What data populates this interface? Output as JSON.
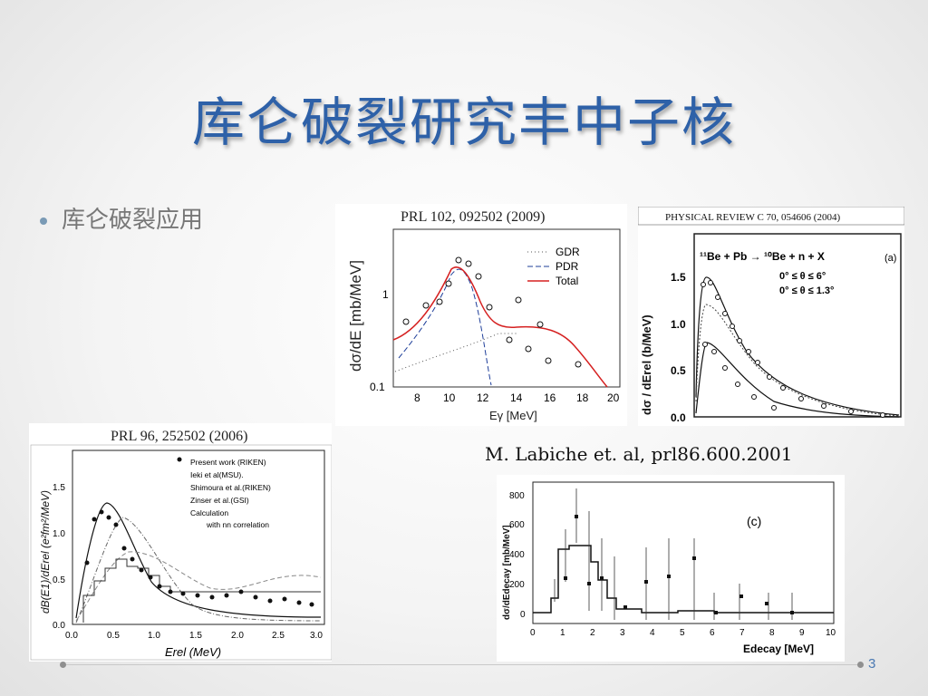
{
  "slide": {
    "title": "库仑破裂研究丰中子核",
    "bullet": "库仑破裂应用",
    "citation": "M. Labiche et. al, prl86.600.2001",
    "page_number": "3"
  },
  "plot1": {
    "header": "PRL 102, 092502 (2009)",
    "ylabel": "dσ/dE [mb/MeV]",
    "xlabel": "Eγ [MeV]",
    "xticks": [
      "8",
      "10",
      "12",
      "14",
      "16",
      "18",
      "20"
    ],
    "yticks": [
      "0.1",
      "1"
    ],
    "legend": [
      "GDR",
      "PDR",
      "Total"
    ]
  },
  "plot2": {
    "header": "PHYSICAL REVIEW C 70, 054606 (2004)",
    "reaction": "¹¹Be + Pb → ¹⁰Be + n + X",
    "cond1": "0° ≤ θ ≤ 6°",
    "cond2": "0° ≤ θ ≤ 1.3°",
    "panel_label": "(a)",
    "ylabel": "dσ / dErel (b/MeV)",
    "yticks": [
      "0.0",
      "0.5",
      "1.0",
      "1.5"
    ]
  },
  "plot3": {
    "header": "PRL 96, 252502 (2006)",
    "legend": [
      "Present work (RIKEN)",
      "Ieki et al(MSU).",
      "Shimoura et al.(RIKEN)",
      "Zinser et al.(GSI)",
      "Calculation",
      "with nn correlation"
    ],
    "ylabel": "dB(E1)/dErel (e²fm²/MeV)",
    "xlabel": "Erel (MeV)",
    "xticks": [
      "0.0",
      "0.5",
      "1.0",
      "1.5",
      "2.0",
      "2.5",
      "3.0"
    ],
    "yticks": [
      "0.0",
      "0.5",
      "1.0",
      "1.5"
    ]
  },
  "plot4": {
    "ylabel": "dσ/dEdecay [mb/MeV]",
    "xlabel": "Edecay [MeV]",
    "panel_label": "(c)",
    "xticks": [
      "0",
      "1",
      "2",
      "3",
      "4",
      "5",
      "6",
      "7",
      "8",
      "9",
      "10"
    ],
    "yticks": [
      "0",
      "200",
      "400",
      "600",
      "800"
    ]
  }
}
